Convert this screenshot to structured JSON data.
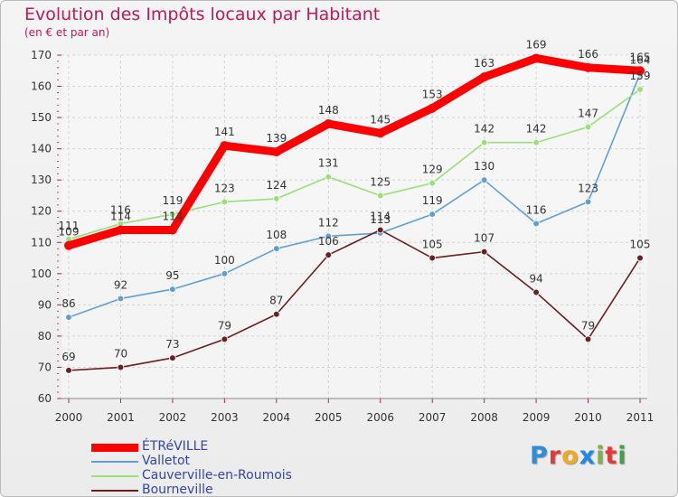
{
  "title": "Evolution des Impôts locaux par Habitant",
  "subtitle": "(en € et par an)",
  "logo": {
    "letters": [
      "P",
      "r",
      "o",
      "x",
      "i",
      "t",
      "i"
    ],
    "colors": [
      "#2e8fd8",
      "#e53935",
      "#f5a623",
      "#1e88e5",
      "#7cb342",
      "#e53935",
      "#43a047"
    ]
  },
  "chart_data": {
    "type": "line",
    "title": "Evolution des Impôts locaux par Habitant",
    "subtitle": "(en € et par an)",
    "x": [
      "2000",
      "2001",
      "2002",
      "2003",
      "2004",
      "2005",
      "2006",
      "2007",
      "2008",
      "2009",
      "2010",
      "2011"
    ],
    "ylim": [
      60,
      170
    ],
    "yticks": [
      60,
      70,
      80,
      90,
      100,
      110,
      120,
      130,
      140,
      150,
      160,
      170
    ],
    "grid": true,
    "legend_position": "bottom-left",
    "series": [
      {
        "name": "ÉTRéVILLE",
        "color": "#ff0000",
        "emphasis": true,
        "values": [
          109,
          114,
          114,
          141,
          139,
          148,
          145,
          153,
          163,
          169,
          166,
          165
        ]
      },
      {
        "name": "Valletot",
        "color": "#5f9fd6",
        "values": [
          86,
          92,
          95,
          100,
          108,
          112,
          113,
          119,
          130,
          116,
          123,
          164
        ]
      },
      {
        "name": "Cauverville-en-Roumois",
        "color": "#99e076",
        "values": [
          111,
          116,
          119,
          123,
          124,
          131,
          125,
          129,
          142,
          142,
          147,
          159
        ]
      },
      {
        "name": "Bourneville",
        "color": "#6b1f1f",
        "values": [
          69,
          70,
          73,
          79,
          87,
          106,
          114,
          105,
          107,
          94,
          79,
          105
        ]
      }
    ]
  }
}
